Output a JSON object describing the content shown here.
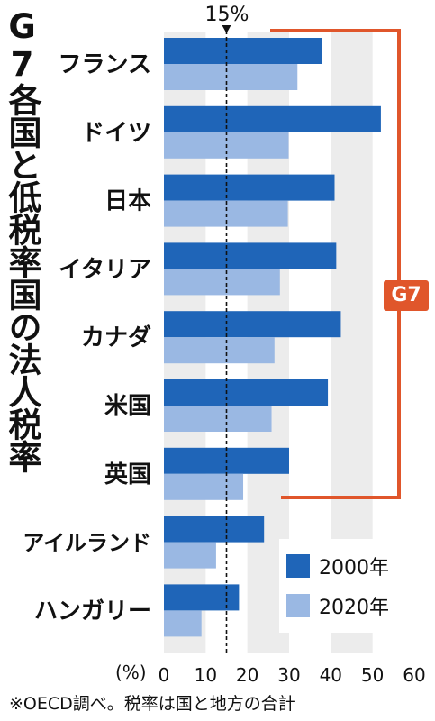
{
  "title": "G7各国と低税率国の法人税率",
  "source_note": "※OECD調べ。税率は国と地方の合計",
  "colors": {
    "series_2000": "#1f65b8",
    "series_2020": "#9ab8e3",
    "accent": "#e0562b",
    "band": "#ececec"
  },
  "g7_label": "G7",
  "marker": {
    "value": 15,
    "label": "15%"
  },
  "chart_data": {
    "type": "bar",
    "orientation": "horizontal",
    "title": "G7各国と低税率国の法人税率",
    "categories": [
      "フランス",
      "ドイツ",
      "日本",
      "イタリア",
      "カナダ",
      "米国",
      "英国",
      "アイルランド",
      "ハンガリー"
    ],
    "series": [
      {
        "name": "2000年",
        "values": [
          37.8,
          52.0,
          40.9,
          41.3,
          42.4,
          39.3,
          30.0,
          24.0,
          18.0
        ]
      },
      {
        "name": "2020年",
        "values": [
          32.0,
          29.9,
          29.7,
          27.8,
          26.5,
          25.8,
          19.0,
          12.5,
          9.0
        ]
      }
    ],
    "unit_label": "(%)",
    "xlim": [
      0,
      60
    ],
    "xticks": [
      0,
      10,
      20,
      30,
      40,
      50,
      60
    ],
    "reference_line": {
      "value": 15,
      "label": "15%"
    },
    "group_bracket": {
      "label": "G7",
      "categories": [
        "フランス",
        "ドイツ",
        "日本",
        "イタリア",
        "カナダ",
        "米国",
        "英国"
      ]
    },
    "legend_position": "bottom-right"
  }
}
